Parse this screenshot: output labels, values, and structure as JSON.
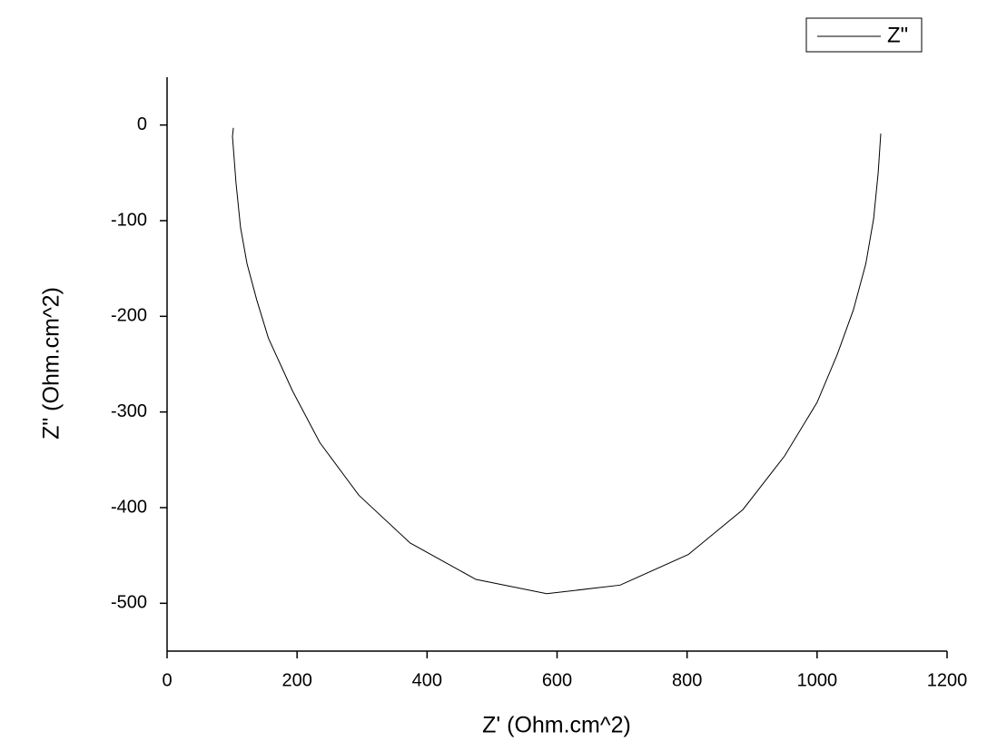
{
  "chart_data": {
    "type": "line",
    "x_label": "Z' (Ohm.cm^2)",
    "y_label": "Z\" (Ohm.cm^2)",
    "x": [
      102,
      100.6,
      106,
      113,
      123,
      138,
      156,
      193,
      235,
      295,
      374,
      475,
      584,
      697,
      802,
      886,
      950,
      1000,
      1031,
      1056,
      1075,
      1087,
      1094,
      1098
    ],
    "series": [
      {
        "name": "Z\"",
        "color": "#000000",
        "values": [
          -3,
          -12,
          -60,
          -107,
          -145,
          -183,
          -223,
          -278,
          -332,
          -387,
          -437,
          -475,
          -490,
          -481,
          -449,
          -402,
          -346,
          -290,
          -240,
          -193,
          -145,
          -98,
          -50,
          -9
        ]
      }
    ],
    "xlim": [
      0,
      1200
    ],
    "xticks": [
      0,
      200,
      400,
      600,
      800,
      1000,
      1200
    ],
    "ylim": [
      -550,
      50
    ],
    "yticks": [
      -500,
      -400,
      -300,
      -200,
      -100,
      0
    ],
    "grid": false,
    "legend": "top-right"
  }
}
